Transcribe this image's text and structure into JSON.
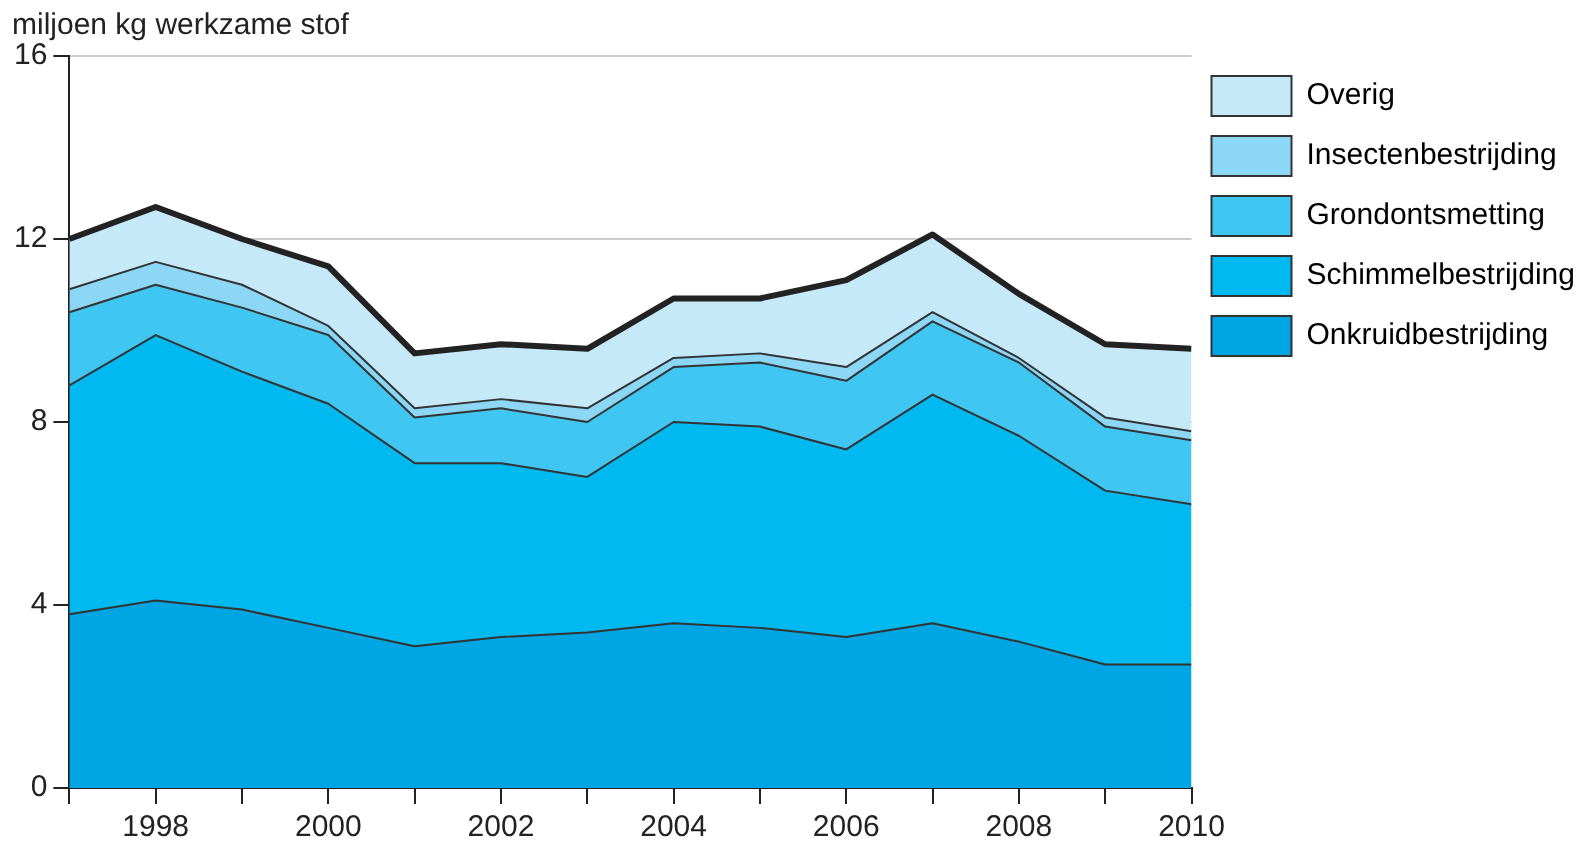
{
  "chart_data": {
    "type": "area",
    "stacked": true,
    "ylabel": "miljoen kg werkzame stof",
    "x": [
      1997,
      1998,
      1999,
      2000,
      2001,
      2002,
      2003,
      2004,
      2005,
      2006,
      2007,
      2008,
      2009,
      2010
    ],
    "xlim": [
      1997,
      2010
    ],
    "xticks": [
      {
        "value": 1997,
        "label": null
      },
      1998,
      {
        "value": 1999,
        "label": null
      },
      2000,
      {
        "value": 2001,
        "label": null
      },
      2002,
      {
        "value": 2003,
        "label": null
      },
      2004,
      {
        "value": 2005,
        "label": null
      },
      2006,
      {
        "value": 2007,
        "label": null
      },
      2008,
      {
        "value": 2009,
        "label": null
      },
      2010
    ],
    "ylim": [
      0,
      16
    ],
    "yticks": [
      0,
      4,
      8,
      12,
      16
    ],
    "grid": "y",
    "legend": "right",
    "series": [
      {
        "name": "Onkruidbestrijding",
        "color": "#00a5e3",
        "values": [
          3.8,
          4.1,
          3.9,
          3.5,
          3.1,
          3.3,
          3.4,
          3.6,
          3.5,
          3.3,
          3.6,
          3.2,
          2.7,
          2.7
        ]
      },
      {
        "name": "Schimmelbestrijding",
        "color": "#00b9f0",
        "values": [
          5.0,
          5.8,
          5.2,
          4.9,
          4.0,
          3.8,
          3.4,
          4.4,
          4.4,
          4.1,
          5.0,
          4.5,
          3.8,
          3.5
        ]
      },
      {
        "name": "Grondontsmetting",
        "color": "#40c6f2",
        "values": [
          1.6,
          1.1,
          1.4,
          1.5,
          1.0,
          1.2,
          1.2,
          1.2,
          1.4,
          1.5,
          1.6,
          1.6,
          1.4,
          1.4
        ]
      },
      {
        "name": "Insectenbestrijding",
        "color": "#8dd7f6",
        "values": [
          0.5,
          0.5,
          0.5,
          0.2,
          0.2,
          0.2,
          0.3,
          0.2,
          0.2,
          0.3,
          0.2,
          0.1,
          0.2,
          0.2
        ]
      },
      {
        "name": "Overig",
        "color": "#c6e9f9",
        "values": [
          1.1,
          1.2,
          1.0,
          1.3,
          1.2,
          1.2,
          1.3,
          1.3,
          1.2,
          1.9,
          1.7,
          1.4,
          1.6,
          1.8
        ]
      }
    ]
  }
}
